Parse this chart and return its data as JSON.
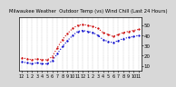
{
  "title": "Milwaukee Weather  Outdoor Temp (vs) Wind Chill (Last 24 Hours)",
  "bg_color": "#d8d8d8",
  "plot_bg": "#ffffff",
  "red_color": "#cc0000",
  "blue_color": "#0000cc",
  "x": [
    0,
    1,
    2,
    3,
    4,
    5,
    6,
    7,
    8,
    9,
    10,
    11,
    12,
    13,
    14,
    15,
    16,
    17,
    18,
    19,
    20,
    21,
    22,
    23
  ],
  "temp": [
    18,
    17,
    16,
    17,
    16,
    16,
    19,
    28,
    36,
    42,
    47,
    50,
    51,
    50,
    49,
    47,
    43,
    41,
    39,
    41,
    43,
    44,
    45,
    46
  ],
  "wind_chill": [
    14,
    13,
    12,
    13,
    12,
    12,
    15,
    22,
    29,
    35,
    40,
    44,
    45,
    44,
    43,
    40,
    36,
    34,
    33,
    35,
    37,
    38,
    39,
    40
  ],
  "ylim": [
    5,
    58
  ],
  "yticks": [
    10,
    20,
    30,
    40,
    50
  ],
  "ylabel_fontsize": 4,
  "xlabel_fontsize": 3.5,
  "title_fontsize": 3.8,
  "line_width": 0.8,
  "marker_size": 1.2,
  "grid_color": "#aaaaaa",
  "xlabels": [
    "12",
    "1",
    "2",
    "3",
    "4",
    "5",
    "6",
    "7",
    "8",
    "9",
    "10",
    "11",
    "12",
    "1",
    "2",
    "3",
    "4",
    "5",
    "6",
    "7",
    "8",
    "9",
    "10",
    "11"
  ]
}
